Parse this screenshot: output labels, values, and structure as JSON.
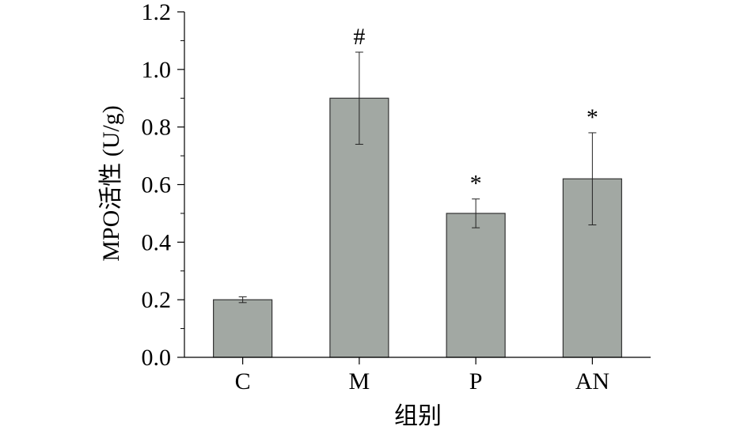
{
  "chart_data": {
    "type": "bar",
    "title": "",
    "xlabel": "组别",
    "ylabel": "MPO活性 (U/g)",
    "categories": [
      "C",
      "M",
      "P",
      "AN"
    ],
    "values": [
      0.2,
      0.9,
      0.5,
      0.62
    ],
    "error_low": [
      0.19,
      0.74,
      0.45,
      0.46
    ],
    "error_high": [
      0.21,
      1.06,
      0.55,
      0.78
    ],
    "annotations": [
      "",
      "#",
      "*",
      "*"
    ],
    "ylim": [
      0,
      1.2
    ],
    "yticks": [
      "0.0",
      "0.2",
      "0.4",
      "0.6",
      "0.8",
      "1.0",
      "1.2"
    ],
    "grid": false,
    "legend": "none",
    "colors": {
      "bar_fill": "#a2a8a3",
      "bar_stroke": "#333333",
      "axis": "#000000"
    }
  }
}
